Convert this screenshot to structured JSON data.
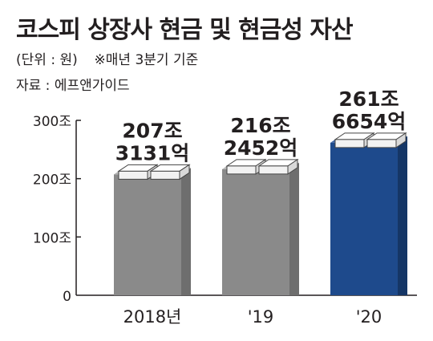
{
  "header": {
    "title": "코스피 상장사 현금 및 현금성 자산",
    "unit_note": "(단위 : 원)",
    "basis_note": "※매년 3분기 기준",
    "source": "자료 : 에프앤가이드"
  },
  "colors": {
    "gray_front": "#8a8a8a",
    "gray_side": "#6e6e6e",
    "gray_top": "#b4b4b4",
    "navy_front": "#1e4a8c",
    "navy_side": "#153666",
    "navy_top": "#3f66a6",
    "axis": "#231f20"
  },
  "chart_data": {
    "type": "bar",
    "title": "코스피 상장사 현금 및 현금성 자산",
    "categories": [
      "2018년",
      "'19",
      "'20"
    ],
    "values": [
      207.3131,
      216.2452,
      261.6654
    ],
    "value_labels": [
      [
        "207조",
        "3131억"
      ],
      [
        "216조",
        "2452억"
      ],
      [
        "261조",
        "6654억"
      ]
    ],
    "highlight_index": 2,
    "y_ticks": [
      {
        "value": 0,
        "label": "0"
      },
      {
        "value": 100,
        "label": "100조"
      },
      {
        "value": 200,
        "label": "200조"
      },
      {
        "value": 300,
        "label": "300조"
      }
    ],
    "ylim": [
      0,
      300
    ],
    "xlabel": "",
    "ylabel": ""
  }
}
